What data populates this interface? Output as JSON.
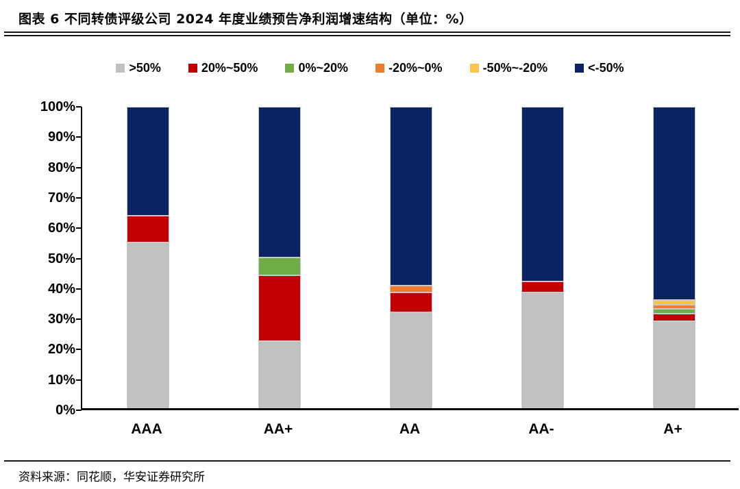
{
  "header": {
    "title": "图表 6  不同转债评级公司 2024 年度业绩预告净利润增速结构（单位：%）"
  },
  "footer": {
    "source": "资料来源：同花顺，华安证券研究所"
  },
  "colors": {
    "axis": "#000000",
    "segment_border": "#c9c9c9"
  },
  "chart_data": {
    "type": "bar",
    "stacked": true,
    "percent_stacked": true,
    "title": "不同转债评级公司 2024 年度业绩预告净利润增速结构",
    "unit": "%",
    "xlabel": "",
    "ylabel": "",
    "ylim": [
      0,
      100
    ],
    "ytick_step": 10,
    "ytick_suffix": "%",
    "grid": false,
    "legend_position": "top",
    "categories": [
      "AAA",
      "AA+",
      "AA",
      "AA-",
      "A+"
    ],
    "series": [
      {
        "name": ">50%",
        "color": "#c1c1c1",
        "values": [
          54.9,
          22.3,
          31.8,
          38.4,
          28.9
        ]
      },
      {
        "name": "20%~50%",
        "color": "#c00000",
        "values": [
          9.0,
          21.9,
          6.6,
          3.6,
          2.5
        ]
      },
      {
        "name": "0%~20%",
        "color": "#70ad47",
        "values": [
          0,
          5.9,
          0,
          0,
          1.6
        ]
      },
      {
        "name": "-20%~0%",
        "color": "#ed7d31",
        "values": [
          0,
          0,
          2.2,
          0,
          1.3
        ]
      },
      {
        "name": "-50%~-20%",
        "color": "#fbc64b",
        "values": [
          0,
          0,
          0,
          0,
          1.6
        ]
      },
      {
        "name": "<-50%",
        "color": "#0a2163",
        "values": [
          36.1,
          49.9,
          59.4,
          58.0,
          64.1
        ]
      }
    ]
  }
}
